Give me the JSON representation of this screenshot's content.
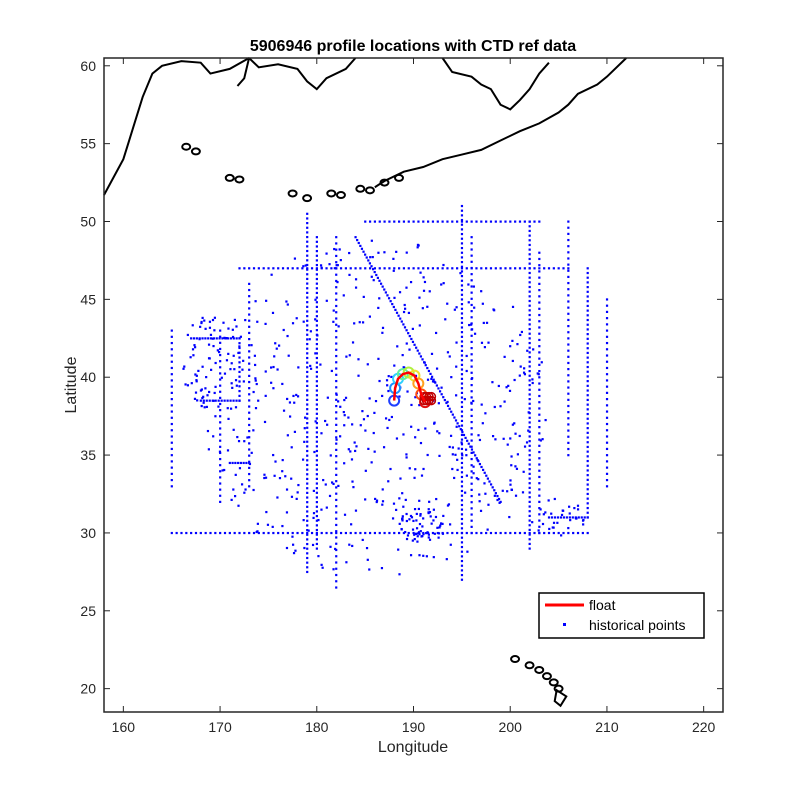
{
  "chart_data": {
    "type": "scatter",
    "title": "5906946 profile locations with CTD ref data",
    "xlabel": "Longitude",
    "ylabel": "Latitude",
    "xlim": [
      158,
      222
    ],
    "ylim": [
      18.5,
      60.5
    ],
    "xticks": [
      160,
      170,
      180,
      190,
      200,
      210,
      220
    ],
    "yticks": [
      20,
      25,
      30,
      35,
      40,
      45,
      50,
      55,
      60
    ],
    "grid": false,
    "legend": {
      "placement": "bottom-right",
      "entries": [
        {
          "label": "float",
          "color": "#ff0000",
          "marker": "line"
        },
        {
          "label": "historical points",
          "color": "#0000ff",
          "marker": "dot"
        }
      ]
    },
    "colors": {
      "float": "#ff0000",
      "historical": "#0000ff",
      "coast": "#000000"
    },
    "series": [
      {
        "name": "historical points",
        "groups": [
          {
            "kind": "line",
            "from": [
              165,
              30
            ],
            "to": [
              208,
              30
            ],
            "step": 0.5
          },
          {
            "kind": "line",
            "from": [
              172,
              47
            ],
            "to": [
              206,
              47
            ],
            "step": 0.5
          },
          {
            "kind": "line",
            "from": [
              185,
              50
            ],
            "to": [
              203,
              50
            ],
            "step": 0.5
          },
          {
            "kind": "line",
            "from": [
              179,
              27.5
            ],
            "to": [
              179,
              50.5
            ],
            "step": 0.3
          },
          {
            "kind": "line",
            "from": [
              180,
              29
            ],
            "to": [
              180,
              49
            ],
            "step": 0.3
          },
          {
            "kind": "line",
            "from": [
              195,
              27
            ],
            "to": [
              195,
              51
            ],
            "step": 0.3
          },
          {
            "kind": "line",
            "from": [
              202,
              29
            ],
            "to": [
              202,
              50
            ],
            "step": 0.3
          },
          {
            "kind": "line",
            "from": [
              208,
              31
            ],
            "to": [
              208,
              47
            ],
            "step": 0.3
          },
          {
            "kind": "line",
            "from": [
              196,
              30
            ],
            "to": [
              196,
              49
            ],
            "step": 0.4
          },
          {
            "kind": "line",
            "from": [
              203,
              30
            ],
            "to": [
              203,
              48
            ],
            "step": 0.4
          },
          {
            "kind": "line",
            "from": [
              210,
              33
            ],
            "to": [
              210,
              45
            ],
            "step": 0.4
          },
          {
            "kind": "line",
            "from": [
              170,
              32
            ],
            "to": [
              170,
              43
            ],
            "step": 0.4
          },
          {
            "kind": "line",
            "from": [
              173,
              33
            ],
            "to": [
              173,
              46
            ],
            "step": 0.4
          },
          {
            "kind": "line",
            "from": [
              165,
              33
            ],
            "to": [
              165,
              43
            ],
            "step": 0.4
          },
          {
            "kind": "line",
            "from": [
              182,
              26.5
            ],
            "to": [
              182,
              49
            ],
            "step": 0.4
          },
          {
            "kind": "line",
            "from": [
              184,
              49
            ],
            "to": [
              199,
              32
            ],
            "step": 0.25
          },
          {
            "kind": "line",
            "from": [
              167,
              42.5
            ],
            "to": [
              172,
              42.5
            ],
            "step": 0.3
          },
          {
            "kind": "line",
            "from": [
              168,
              38.5
            ],
            "to": [
              172,
              38.5
            ],
            "step": 0.3
          },
          {
            "kind": "line",
            "from": [
              171,
              34.5
            ],
            "to": [
              173,
              34.5
            ],
            "step": 0.3
          },
          {
            "kind": "line",
            "from": [
              172,
              38.5
            ],
            "to": [
              172,
              42.5
            ],
            "step": 0.3
          },
          {
            "kind": "line",
            "from": [
              206,
              35
            ],
            "to": [
              206,
              50
            ],
            "step": 0.4
          },
          {
            "kind": "line",
            "from": [
              204,
              31
            ],
            "to": [
              208,
              31
            ],
            "step": 0.3
          },
          {
            "kind": "scatter",
            "center": [
              191,
              30.5
            ],
            "spread": [
              2.5,
              1.2
            ],
            "count": 55
          },
          {
            "kind": "scatter",
            "center": [
              169,
              41
            ],
            "spread": [
              3,
              3
            ],
            "count": 70
          },
          {
            "kind": "scatter",
            "center": [
              186,
              38
            ],
            "spread": [
              18,
              11
            ],
            "count": 520
          },
          {
            "kind": "scatter",
            "center": [
              205,
              31
            ],
            "spread": [
              3,
              1.2
            ],
            "count": 30
          }
        ]
      },
      {
        "name": "float",
        "track": [
          [
            188,
            38.5
          ],
          [
            188.1,
            39.3
          ],
          [
            188.4,
            39.9
          ],
          [
            188.9,
            40.2
          ],
          [
            189.5,
            40.3
          ],
          [
            190.1,
            40.1
          ],
          [
            190.5,
            39.6
          ],
          [
            190.8,
            38.9
          ],
          [
            191.2,
            38.4
          ]
        ],
        "profile_cluster": {
          "center": [
            191.5,
            38.5
          ],
          "count": 8
        }
      }
    ]
  }
}
